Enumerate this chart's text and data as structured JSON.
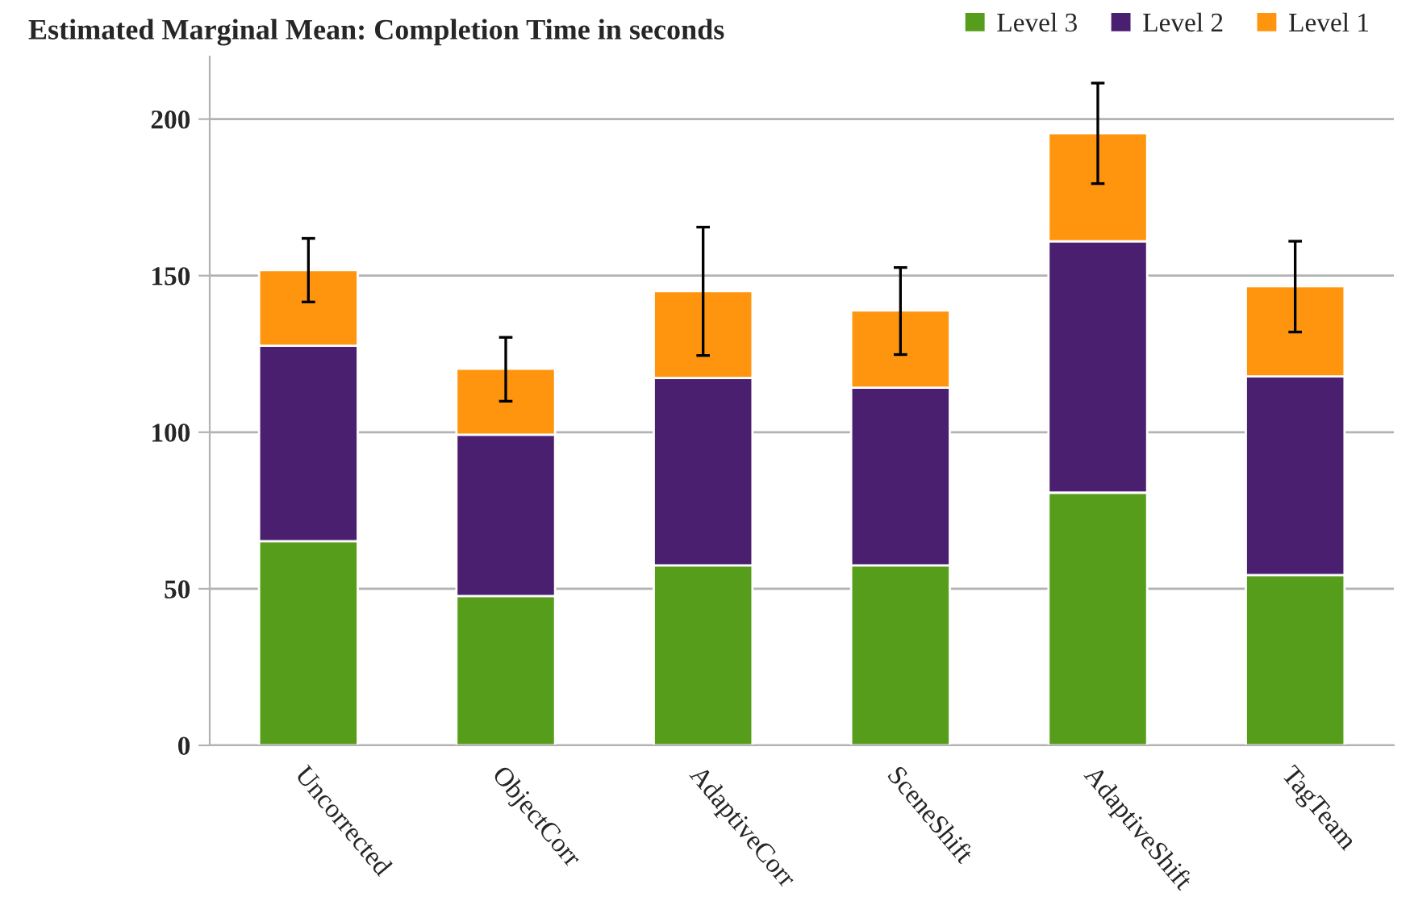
{
  "chart_data": {
    "type": "bar",
    "title": "Estimated Marginal Mean: Completion Time in seconds",
    "categories": [
      "Uncorrected",
      "ObjectCorr",
      "AdaptiveCorr",
      "SceneShift",
      "AdaptiveShift",
      "TagTeam"
    ],
    "stacked": true,
    "series": [
      {
        "name": "Level 3",
        "color": "#579d1c",
        "values": [
          65.2,
          47.7,
          57.5,
          57.5,
          80.7,
          54.4
        ]
      },
      {
        "name": "Level 2",
        "color": "#4b1f6f",
        "values": [
          62.4,
          51.5,
          59.8,
          56.7,
          80.3,
          63.4
        ]
      },
      {
        "name": "Level 1",
        "color": "#ff950e",
        "values": [
          24.2,
          21.1,
          27.8,
          24.7,
          34.5,
          28.8
        ],
        "errors": [
          [
            141.6,
            161.9
          ],
          [
            109.9,
            130.3
          ],
          [
            124.5,
            165.5
          ],
          [
            124.8,
            152.6
          ],
          [
            179.4,
            211.5
          ],
          [
            132.0,
            161.0
          ]
        ]
      }
    ],
    "ylim": [
      0,
      220
    ],
    "yticks": [
      0,
      50,
      100,
      150,
      200
    ],
    "grid": "y",
    "legend": "top right"
  }
}
